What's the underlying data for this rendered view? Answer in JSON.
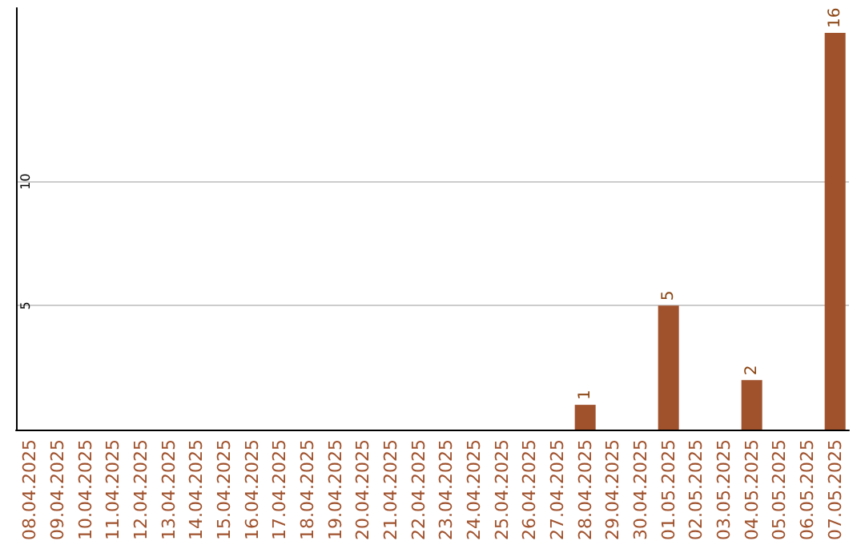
{
  "chart_data": {
    "type": "bar",
    "categories": [
      "08.04.2025",
      "09.04.2025",
      "10.04.2025",
      "11.04.2025",
      "12.04.2025",
      "13.04.2025",
      "14.04.2025",
      "15.04.2025",
      "16.04.2025",
      "17.04.2025",
      "18.04.2025",
      "19.04.2025",
      "20.04.2025",
      "21.04.2025",
      "22.04.2025",
      "23.04.2025",
      "24.04.2025",
      "25.04.2025",
      "26.04.2025",
      "27.04.2025",
      "28.04.2025",
      "29.04.2025",
      "30.04.2025",
      "01.05.2025",
      "02.05.2025",
      "03.05.2025",
      "04.05.2025",
      "05.05.2025",
      "06.05.2025",
      "07.05.2025"
    ],
    "values": [
      0,
      0,
      0,
      0,
      0,
      0,
      0,
      0,
      0,
      0,
      0,
      0,
      0,
      0,
      0,
      0,
      0,
      0,
      0,
      0,
      1,
      0,
      0,
      5,
      0,
      0,
      2,
      0,
      0,
      16
    ],
    "value_labels": [
      null,
      null,
      null,
      null,
      null,
      null,
      null,
      null,
      null,
      null,
      null,
      null,
      null,
      null,
      null,
      null,
      null,
      null,
      null,
      null,
      "1",
      null,
      null,
      "5",
      null,
      null,
      "2",
      null,
      null,
      "16"
    ],
    "color": "#a0522d",
    "ylim": [
      0,
      17
    ],
    "yticks": [
      5,
      10
    ],
    "grid": "y"
  }
}
